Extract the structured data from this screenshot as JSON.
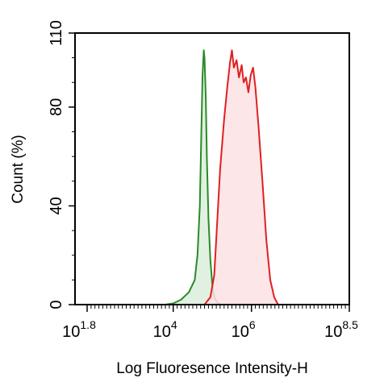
{
  "chart_data": {
    "type": "area",
    "title": "",
    "xlabel": "Log Fluoresence Intensity-H",
    "ylabel": "Count  (%)",
    "x_scale": "log10",
    "xlim_exponent": [
      1.8,
      8.5
    ],
    "ylim": [
      0,
      110
    ],
    "x_ticks": [
      {
        "exponent": 1.8,
        "base": "10",
        "sup": "1.8"
      },
      {
        "exponent": 4,
        "base": "10",
        "sup": "4"
      },
      {
        "exponent": 6,
        "base": "10",
        "sup": "6"
      },
      {
        "exponent": 8.5,
        "base": "10",
        "sup": "8.5"
      }
    ],
    "y_ticks": [
      0,
      40,
      80,
      110
    ],
    "grid": false,
    "series": [
      {
        "color": "#2a8a2a",
        "fill": "#dcefdc",
        "points": [
          [
            3.8,
            0
          ],
          [
            4.0,
            0.5
          ],
          [
            4.2,
            2
          ],
          [
            4.4,
            5
          ],
          [
            4.55,
            10
          ],
          [
            4.62,
            20
          ],
          [
            4.68,
            40
          ],
          [
            4.72,
            70
          ],
          [
            4.75,
            93
          ],
          [
            4.78,
            103
          ],
          [
            4.8,
            100
          ],
          [
            4.83,
            85
          ],
          [
            4.86,
            60
          ],
          [
            4.9,
            35
          ],
          [
            4.95,
            18
          ],
          [
            5.0,
            8
          ],
          [
            5.05,
            3
          ],
          [
            5.12,
            1
          ],
          [
            5.2,
            0
          ]
        ]
      },
      {
        "color": "#e02020",
        "fill": "#fce2e4",
        "points": [
          [
            4.8,
            0
          ],
          [
            4.95,
            3
          ],
          [
            5.05,
            12
          ],
          [
            5.12,
            32
          ],
          [
            5.2,
            55
          ],
          [
            5.3,
            75
          ],
          [
            5.38,
            88
          ],
          [
            5.45,
            98
          ],
          [
            5.5,
            103
          ],
          [
            5.55,
            96
          ],
          [
            5.62,
            99
          ],
          [
            5.68,
            92
          ],
          [
            5.75,
            97
          ],
          [
            5.8,
            90
          ],
          [
            5.86,
            92
          ],
          [
            5.92,
            86
          ],
          [
            5.98,
            93
          ],
          [
            6.04,
            96
          ],
          [
            6.1,
            88
          ],
          [
            6.18,
            72
          ],
          [
            6.28,
            50
          ],
          [
            6.38,
            26
          ],
          [
            6.48,
            10
          ],
          [
            6.58,
            3
          ],
          [
            6.68,
            0
          ]
        ]
      }
    ]
  }
}
